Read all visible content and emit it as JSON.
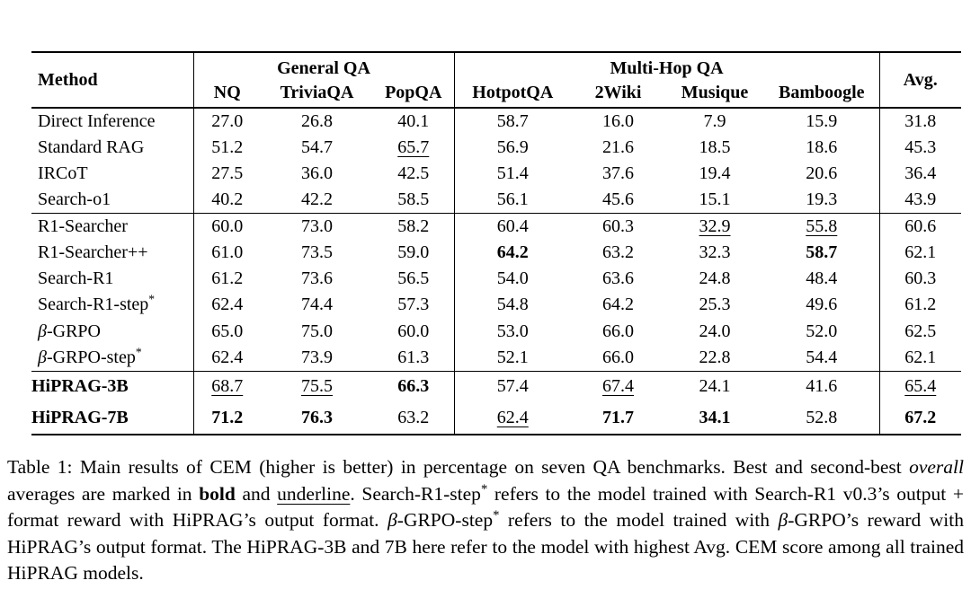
{
  "page": {
    "background_color": "#ffffff",
    "text_color": "#000000"
  },
  "table": {
    "headers": {
      "method": "Method",
      "avg": "Avg.",
      "groups": [
        {
          "label": "General QA",
          "span": 3
        },
        {
          "label": "Multi-Hop QA",
          "span": 4
        }
      ],
      "columns": [
        "NQ",
        "TriviaQA",
        "PopQA",
        "HotpotQA",
        "2Wiki",
        "Musique",
        "Bamboogle"
      ]
    },
    "format_legend": {
      "b": "bold (best)",
      "u": "underline (second-best)"
    },
    "blocks": [
      {
        "rows": [
          {
            "method": "Direct Inference",
            "bold_method": false,
            "values": [
              "27.0",
              "26.8",
              "40.1",
              "58.7",
              "16.0",
              "7.9",
              "15.9",
              "31.8"
            ],
            "formats": [
              "",
              "",
              "",
              "",
              "",
              "",
              "",
              ""
            ]
          },
          {
            "method": "Standard RAG",
            "bold_method": false,
            "values": [
              "51.2",
              "54.7",
              "65.7",
              "56.9",
              "21.6",
              "18.5",
              "18.6",
              "45.3"
            ],
            "formats": [
              "",
              "",
              "u",
              "",
              "",
              "",
              "",
              ""
            ]
          },
          {
            "method": "IRCoT",
            "bold_method": false,
            "values": [
              "27.5",
              "36.0",
              "42.5",
              "51.4",
              "37.6",
              "19.4",
              "20.6",
              "36.4"
            ],
            "formats": [
              "",
              "",
              "",
              "",
              "",
              "",
              "",
              ""
            ]
          },
          {
            "method": "Search-o1",
            "bold_method": false,
            "values": [
              "40.2",
              "42.2",
              "58.5",
              "56.1",
              "45.6",
              "15.1",
              "19.3",
              "43.9"
            ],
            "formats": [
              "",
              "",
              "",
              "",
              "",
              "",
              "",
              ""
            ]
          }
        ]
      },
      {
        "rows": [
          {
            "method": "R1-Searcher",
            "bold_method": false,
            "values": [
              "60.0",
              "73.0",
              "58.2",
              "60.4",
              "60.3",
              "32.9",
              "55.8",
              "60.6"
            ],
            "formats": [
              "",
              "",
              "",
              "",
              "",
              "u",
              "u",
              ""
            ]
          },
          {
            "method": "R1-Searcher++",
            "bold_method": false,
            "values": [
              "61.0",
              "73.5",
              "59.0",
              "64.2",
              "63.2",
              "32.3",
              "58.7",
              "62.1"
            ],
            "formats": [
              "",
              "",
              "",
              "b",
              "",
              "",
              "b",
              ""
            ]
          },
          {
            "method": "Search-R1",
            "bold_method": false,
            "values": [
              "61.2",
              "73.6",
              "56.5",
              "54.0",
              "63.6",
              "24.8",
              "48.4",
              "60.3"
            ],
            "formats": [
              "",
              "",
              "",
              "",
              "",
              "",
              "",
              ""
            ]
          },
          {
            "method": "Search-R1-step*",
            "bold_method": false,
            "values": [
              "62.4",
              "74.4",
              "57.3",
              "54.8",
              "64.2",
              "25.3",
              "49.6",
              "61.2"
            ],
            "formats": [
              "",
              "",
              "",
              "",
              "",
              "",
              "",
              ""
            ]
          },
          {
            "method": "β-GRPO",
            "bold_method": false,
            "values": [
              "65.0",
              "75.0",
              "60.0",
              "53.0",
              "66.0",
              "24.0",
              "52.0",
              "62.5"
            ],
            "formats": [
              "",
              "",
              "",
              "",
              "",
              "",
              "",
              ""
            ]
          },
          {
            "method": "β-GRPO-step*",
            "bold_method": false,
            "values": [
              "62.4",
              "73.9",
              "61.3",
              "52.1",
              "66.0",
              "22.8",
              "54.4",
              "62.1"
            ],
            "formats": [
              "",
              "",
              "",
              "",
              "",
              "",
              "",
              ""
            ]
          }
        ]
      },
      {
        "rows": [
          {
            "method": "HiPRAG-3B",
            "bold_method": true,
            "values": [
              "68.7",
              "75.5",
              "66.3",
              "57.4",
              "67.4",
              "24.1",
              "41.6",
              "65.4"
            ],
            "formats": [
              "u",
              "u",
              "b",
              "",
              "u",
              "",
              "",
              "u"
            ]
          },
          {
            "method": "HiPRAG-7B",
            "bold_method": true,
            "values": [
              "71.2",
              "76.3",
              "63.2",
              "62.4",
              "71.7",
              "34.1",
              "52.8",
              "67.2"
            ],
            "formats": [
              "b",
              "b",
              "",
              "u",
              "b",
              "b",
              "",
              "b"
            ]
          }
        ]
      }
    ]
  },
  "caption": {
    "parts": [
      {
        "style": "normal",
        "text": "Table 1: Main results of CEM (higher is better) in percentage on seven QA benchmarks. Best and second-best "
      },
      {
        "style": "italic",
        "text": "overall"
      },
      {
        "style": "normal",
        "text": " averages are marked in "
      },
      {
        "style": "bold",
        "text": "bold"
      },
      {
        "style": "normal",
        "text": " and "
      },
      {
        "style": "underline",
        "text": "underline"
      },
      {
        "style": "normal",
        "text": ". Search-R1-step"
      },
      {
        "style": "sup",
        "text": "*"
      },
      {
        "style": "normal",
        "text": " refers to the model trained with Search-R1 v0.3’s output + format reward with HiPRAG’s output format. "
      },
      {
        "style": "italic",
        "text": "β"
      },
      {
        "style": "normal",
        "text": "-GRPO-step"
      },
      {
        "style": "sup",
        "text": "*"
      },
      {
        "style": "normal",
        "text": " refers to the model trained with "
      },
      {
        "style": "italic",
        "text": "β"
      },
      {
        "style": "normal",
        "text": "-GRPO’s reward with HiPRAG’s output format. The HiPRAG-3B and 7B here refer to the model with highest Avg. CEM score among all trained HiPRAG models."
      }
    ]
  }
}
